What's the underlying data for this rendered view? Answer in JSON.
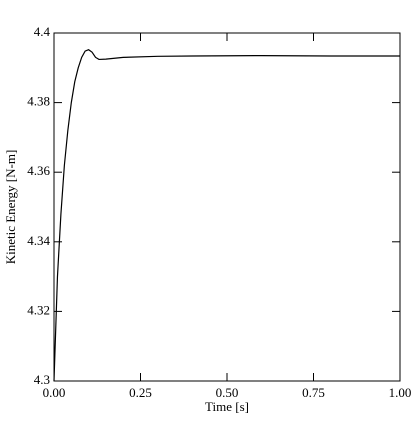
{
  "chart_data": {
    "type": "line",
    "xlabel": "Time [s]",
    "ylabel": "Kinetic Energy [N-m]",
    "x": [
      0,
      0.005,
      0.01,
      0.02,
      0.03,
      0.04,
      0.05,
      0.06,
      0.07,
      0.08,
      0.09,
      0.1,
      0.11,
      0.12,
      0.13,
      0.15,
      0.2,
      0.3,
      0.4,
      0.6,
      0.8,
      1.0
    ],
    "series": [
      {
        "color": "#000000",
        "values": [
          4.3,
          4.315,
          4.33,
          4.348,
          4.362,
          4.372,
          4.38,
          4.386,
          4.39,
          4.393,
          4.3948,
          4.3952,
          4.3945,
          4.393,
          4.3924,
          4.3925,
          4.393,
          4.3933,
          4.3934,
          4.3935,
          4.3934,
          4.3934
        ]
      }
    ],
    "xlim": [
      0,
      1
    ],
    "ylim": [
      4.3,
      4.4
    ],
    "xticks": [
      {
        "value": 0,
        "label": "0.00"
      },
      {
        "value": 0.25,
        "label": "0.25"
      },
      {
        "value": 0.5,
        "label": "0.50"
      },
      {
        "value": 0.75,
        "label": "0.75"
      },
      {
        "value": 1,
        "label": "1.00"
      }
    ],
    "yticks": [
      4.3,
      4.32,
      4.34,
      4.36,
      4.38,
      4.4
    ]
  }
}
